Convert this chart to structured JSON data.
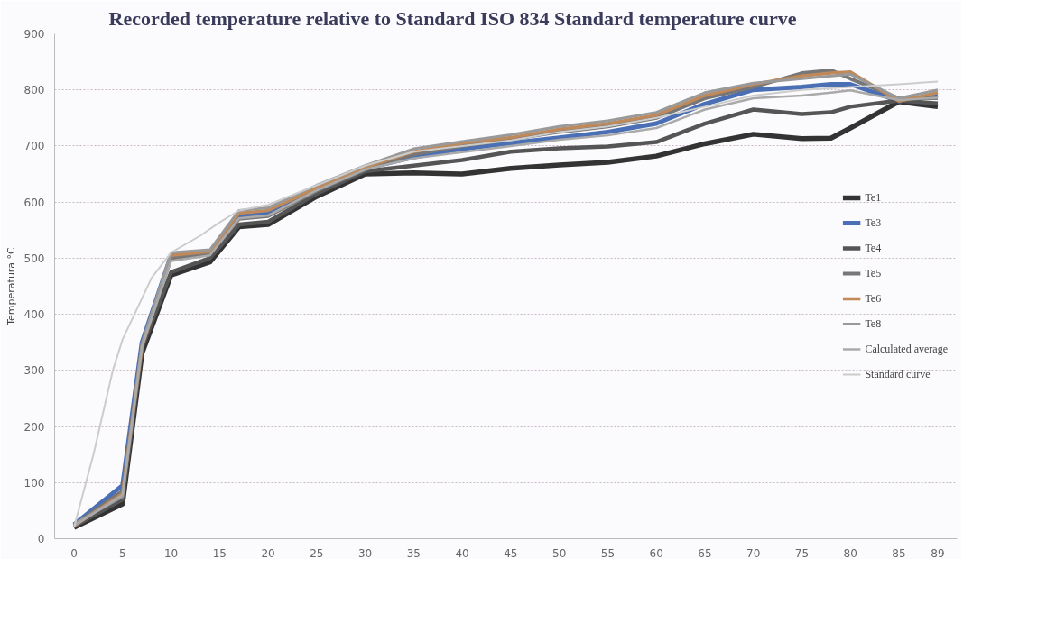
{
  "chart_data": {
    "type": "line",
    "title": "Recorded temperature relative to Standard ISO 834 Standard temperature curve",
    "ylabel": "Temperatura °C",
    "x": [
      0,
      5,
      7,
      10,
      14,
      17,
      20,
      25,
      30,
      35,
      40,
      45,
      50,
      55,
      60,
      65,
      70,
      75,
      78,
      80,
      85,
      89
    ],
    "series": [
      {
        "name": "Te1",
        "color": "#333333",
        "values": [
          20,
          62,
          330,
          470,
          493,
          556,
          560,
          610,
          650,
          652,
          650,
          660,
          666,
          671,
          682,
          704,
          721,
          713,
          714,
          732,
          779,
          770
        ]
      },
      {
        "name": "Te3",
        "color": "#4a6fb5",
        "values": [
          25,
          95,
          350,
          505,
          510,
          575,
          580,
          625,
          660,
          680,
          695,
          705,
          715,
          725,
          740,
          775,
          800,
          805,
          810,
          810,
          780,
          790
        ]
      },
      {
        "name": "Te4",
        "color": "#555555",
        "values": [
          22,
          70,
          340,
          475,
          500,
          560,
          565,
          615,
          655,
          665,
          675,
          690,
          696,
          699,
          707,
          740,
          765,
          757,
          760,
          770,
          781,
          776
        ]
      },
      {
        "name": "Te5",
        "color": "#777777",
        "values": [
          24,
          85,
          345,
          500,
          508,
          570,
          575,
          620,
          658,
          685,
          700,
          712,
          725,
          735,
          750,
          785,
          805,
          830,
          835,
          820,
          785,
          785
        ]
      },
      {
        "name": "Te6",
        "color": "#c0895a",
        "values": [
          23,
          80,
          342,
          505,
          512,
          580,
          585,
          625,
          662,
          690,
          705,
          715,
          730,
          740,
          755,
          790,
          810,
          825,
          830,
          832,
          780,
          795
        ]
      },
      {
        "name": "Te8",
        "color": "#999999",
        "values": [
          26,
          75,
          348,
          510,
          515,
          585,
          590,
          630,
          665,
          695,
          708,
          720,
          735,
          745,
          760,
          795,
          812,
          820,
          825,
          828,
          785,
          800
        ]
      },
      {
        "name": "Calculated average",
        "color": "#aaaaaa",
        "values": [
          23,
          78,
          342,
          495,
          505,
          571,
          576,
          621,
          658,
          678,
          689,
          700,
          711,
          719,
          732,
          765,
          785,
          790,
          795,
          799,
          782,
          786
        ]
      },
      {
        "name": "Standard curve",
        "color": "#cccccc",
        "x": [
          0,
          2,
          4,
          5,
          8,
          10,
          13,
          15,
          17,
          20,
          25,
          30,
          35,
          40,
          45,
          50,
          55,
          60,
          65,
          70,
          75,
          80,
          85,
          89
        ],
        "values": [
          20,
          150,
          300,
          355,
          465,
          510,
          540,
          564,
          585,
          595,
          630,
          665,
          690,
          700,
          710,
          725,
          735,
          750,
          770,
          790,
          800,
          805,
          810,
          815
        ]
      }
    ],
    "xlim": [
      -2,
      91
    ],
    "xticks": [
      0,
      5,
      10,
      15,
      20,
      25,
      30,
      35,
      40,
      45,
      50,
      55,
      60,
      65,
      70,
      75,
      80,
      85,
      89
    ],
    "ylim": [
      0,
      900
    ],
    "yticks": [
      0,
      100,
      200,
      300,
      400,
      500,
      600,
      700,
      800,
      900
    ],
    "grid": "y",
    "legend": "right",
    "marker": "none",
    "line_style": "solid"
  }
}
